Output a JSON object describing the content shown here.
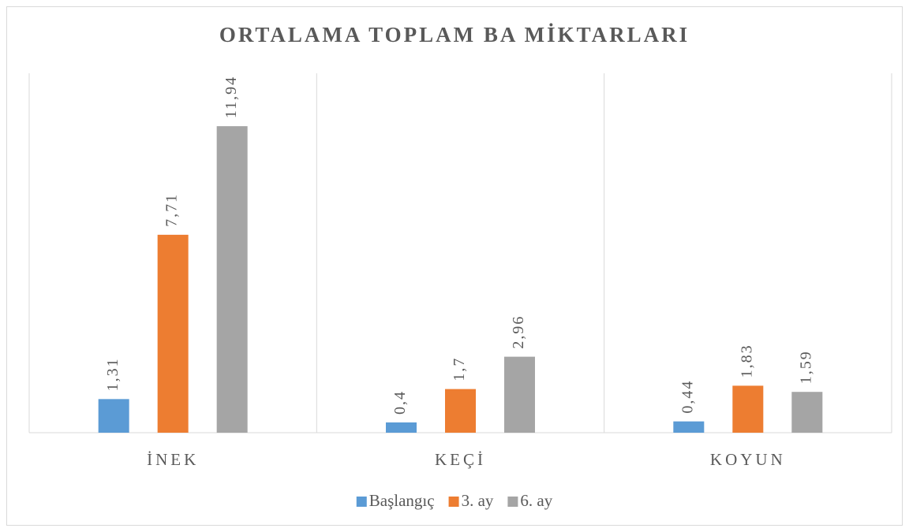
{
  "chart_data": {
    "type": "bar",
    "title": "ORTALAMA TOPLAM BA MİKTARLARI",
    "categories": [
      "İNEK",
      "KEÇİ",
      "KOYUN"
    ],
    "series": [
      {
        "name": "Başlangıç",
        "color": "#5b9bd5",
        "values": [
          1.31,
          0.4,
          0.44
        ],
        "value_labels": [
          "1,31",
          "0,4",
          "0,44"
        ]
      },
      {
        "name": "3. ay",
        "color": "#ed7d31",
        "values": [
          7.71,
          1.7,
          1.83
        ],
        "value_labels": [
          "7,71",
          "1,7",
          "1,83"
        ]
      },
      {
        "name": "6. ay",
        "color": "#a5a5a5",
        "values": [
          11.94,
          2.96,
          1.59
        ],
        "value_labels": [
          "11,94",
          "2,96",
          "1,59"
        ]
      }
    ],
    "ylim": [
      0,
      14
    ],
    "legend": "bottom"
  }
}
